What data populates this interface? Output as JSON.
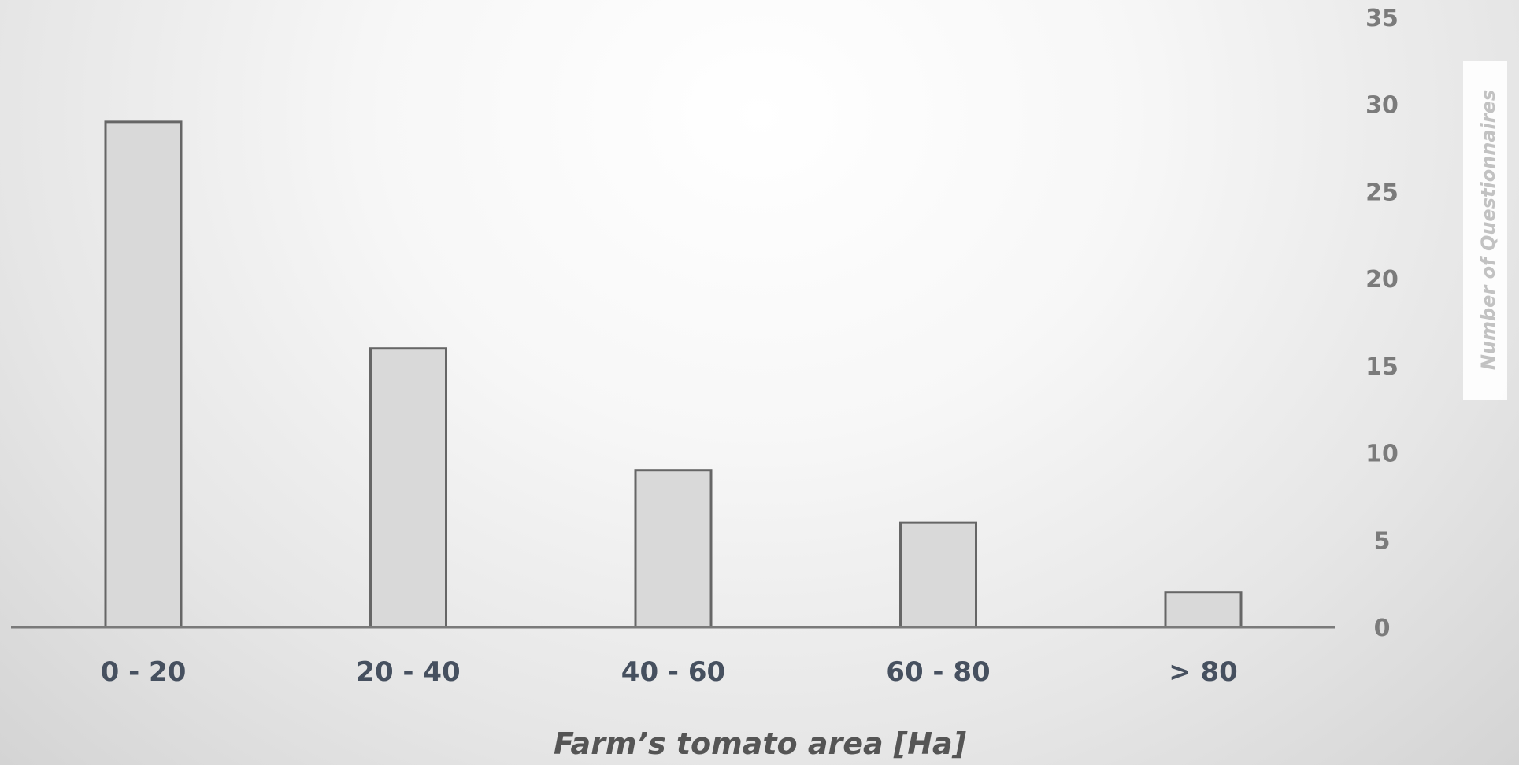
{
  "chart_data": {
    "type": "bar",
    "categories": [
      "0 - 20",
      "20 - 40",
      "40 - 60",
      "60 - 80",
      "> 80"
    ],
    "values": [
      29,
      16,
      9,
      6,
      2
    ],
    "xlabel": "Farm’s tomato area [Ha]",
    "ylabel": "Number of Questionnaires",
    "ylim": [
      0,
      35
    ],
    "yticks": [
      0,
      5,
      10,
      15,
      20,
      25,
      30,
      35
    ],
    "y_axis_side": "right",
    "grid": false,
    "legend": "none",
    "colors": {
      "bar_fill": "#d9d9d9",
      "bar_stroke": "#666666",
      "axis": "#7a7a7a",
      "category_text": "#46505f",
      "tick_text": "#7b7b7b"
    }
  }
}
